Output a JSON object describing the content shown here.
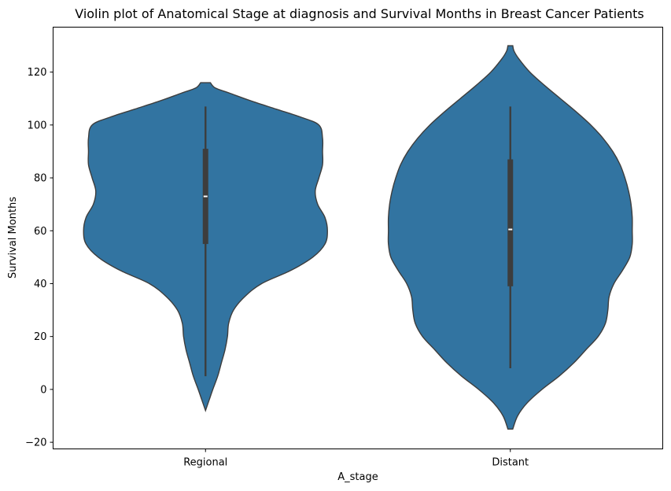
{
  "chart_data": {
    "type": "violin",
    "title": "Violin plot of Anatomical Stage at diagnosis and Survival Months in Breast Cancer Patients",
    "xlabel": "A_stage",
    "ylabel": "Survival Months",
    "categories": [
      "Regional",
      "Distant"
    ],
    "ylim": [
      -22.5,
      137
    ],
    "yticks": [
      -20,
      0,
      20,
      40,
      60,
      80,
      100,
      120
    ],
    "grid": false,
    "legend": "none",
    "fill_color": "#3274a1",
    "edge_color": "#3d3d3d",
    "box_color": "#3d3d3d",
    "median_color": "#ffffff",
    "violins": [
      {
        "category": "Regional",
        "y_min": -8,
        "y_max": 116,
        "whisker_low": 5,
        "q1": 55,
        "median": 73,
        "q3": 91,
        "whisker_high": 107,
        "density": [
          [
            -8,
            0.0
          ],
          [
            -4,
            0.03
          ],
          [
            0,
            0.06
          ],
          [
            5,
            0.1
          ],
          [
            10,
            0.13
          ],
          [
            15,
            0.16
          ],
          [
            20,
            0.18
          ],
          [
            25,
            0.19
          ],
          [
            30,
            0.23
          ],
          [
            35,
            0.32
          ],
          [
            40,
            0.46
          ],
          [
            45,
            0.7
          ],
          [
            50,
            0.88
          ],
          [
            55,
            0.98
          ],
          [
            60,
            1.0
          ],
          [
            65,
            0.98
          ],
          [
            70,
            0.92
          ],
          [
            75,
            0.9
          ],
          [
            80,
            0.93
          ],
          [
            85,
            0.96
          ],
          [
            90,
            0.96
          ],
          [
            95,
            0.96
          ],
          [
            100,
            0.93
          ],
          [
            103,
            0.78
          ],
          [
            106,
            0.58
          ],
          [
            109,
            0.38
          ],
          [
            112,
            0.2
          ],
          [
            114,
            0.08
          ],
          [
            116,
            0.04
          ]
        ]
      },
      {
        "category": "Distant",
        "y_min": -15,
        "y_max": 130,
        "whisker_low": 8,
        "q1": 39,
        "median": 60.5,
        "q3": 87,
        "whisker_high": 107,
        "density": [
          [
            -15,
            0.02
          ],
          [
            -10,
            0.06
          ],
          [
            -5,
            0.14
          ],
          [
            0,
            0.26
          ],
          [
            5,
            0.4
          ],
          [
            10,
            0.52
          ],
          [
            15,
            0.62
          ],
          [
            20,
            0.72
          ],
          [
            25,
            0.78
          ],
          [
            30,
            0.8
          ],
          [
            35,
            0.81
          ],
          [
            40,
            0.85
          ],
          [
            45,
            0.92
          ],
          [
            50,
            0.98
          ],
          [
            55,
            1.0
          ],
          [
            60,
            1.0
          ],
          [
            65,
            1.0
          ],
          [
            70,
            0.99
          ],
          [
            75,
            0.97
          ],
          [
            80,
            0.94
          ],
          [
            85,
            0.9
          ],
          [
            90,
            0.84
          ],
          [
            95,
            0.76
          ],
          [
            100,
            0.66
          ],
          [
            105,
            0.54
          ],
          [
            110,
            0.41
          ],
          [
            115,
            0.28
          ],
          [
            120,
            0.16
          ],
          [
            125,
            0.07
          ],
          [
            128,
            0.03
          ],
          [
            130,
            0.02
          ]
        ]
      }
    ]
  }
}
